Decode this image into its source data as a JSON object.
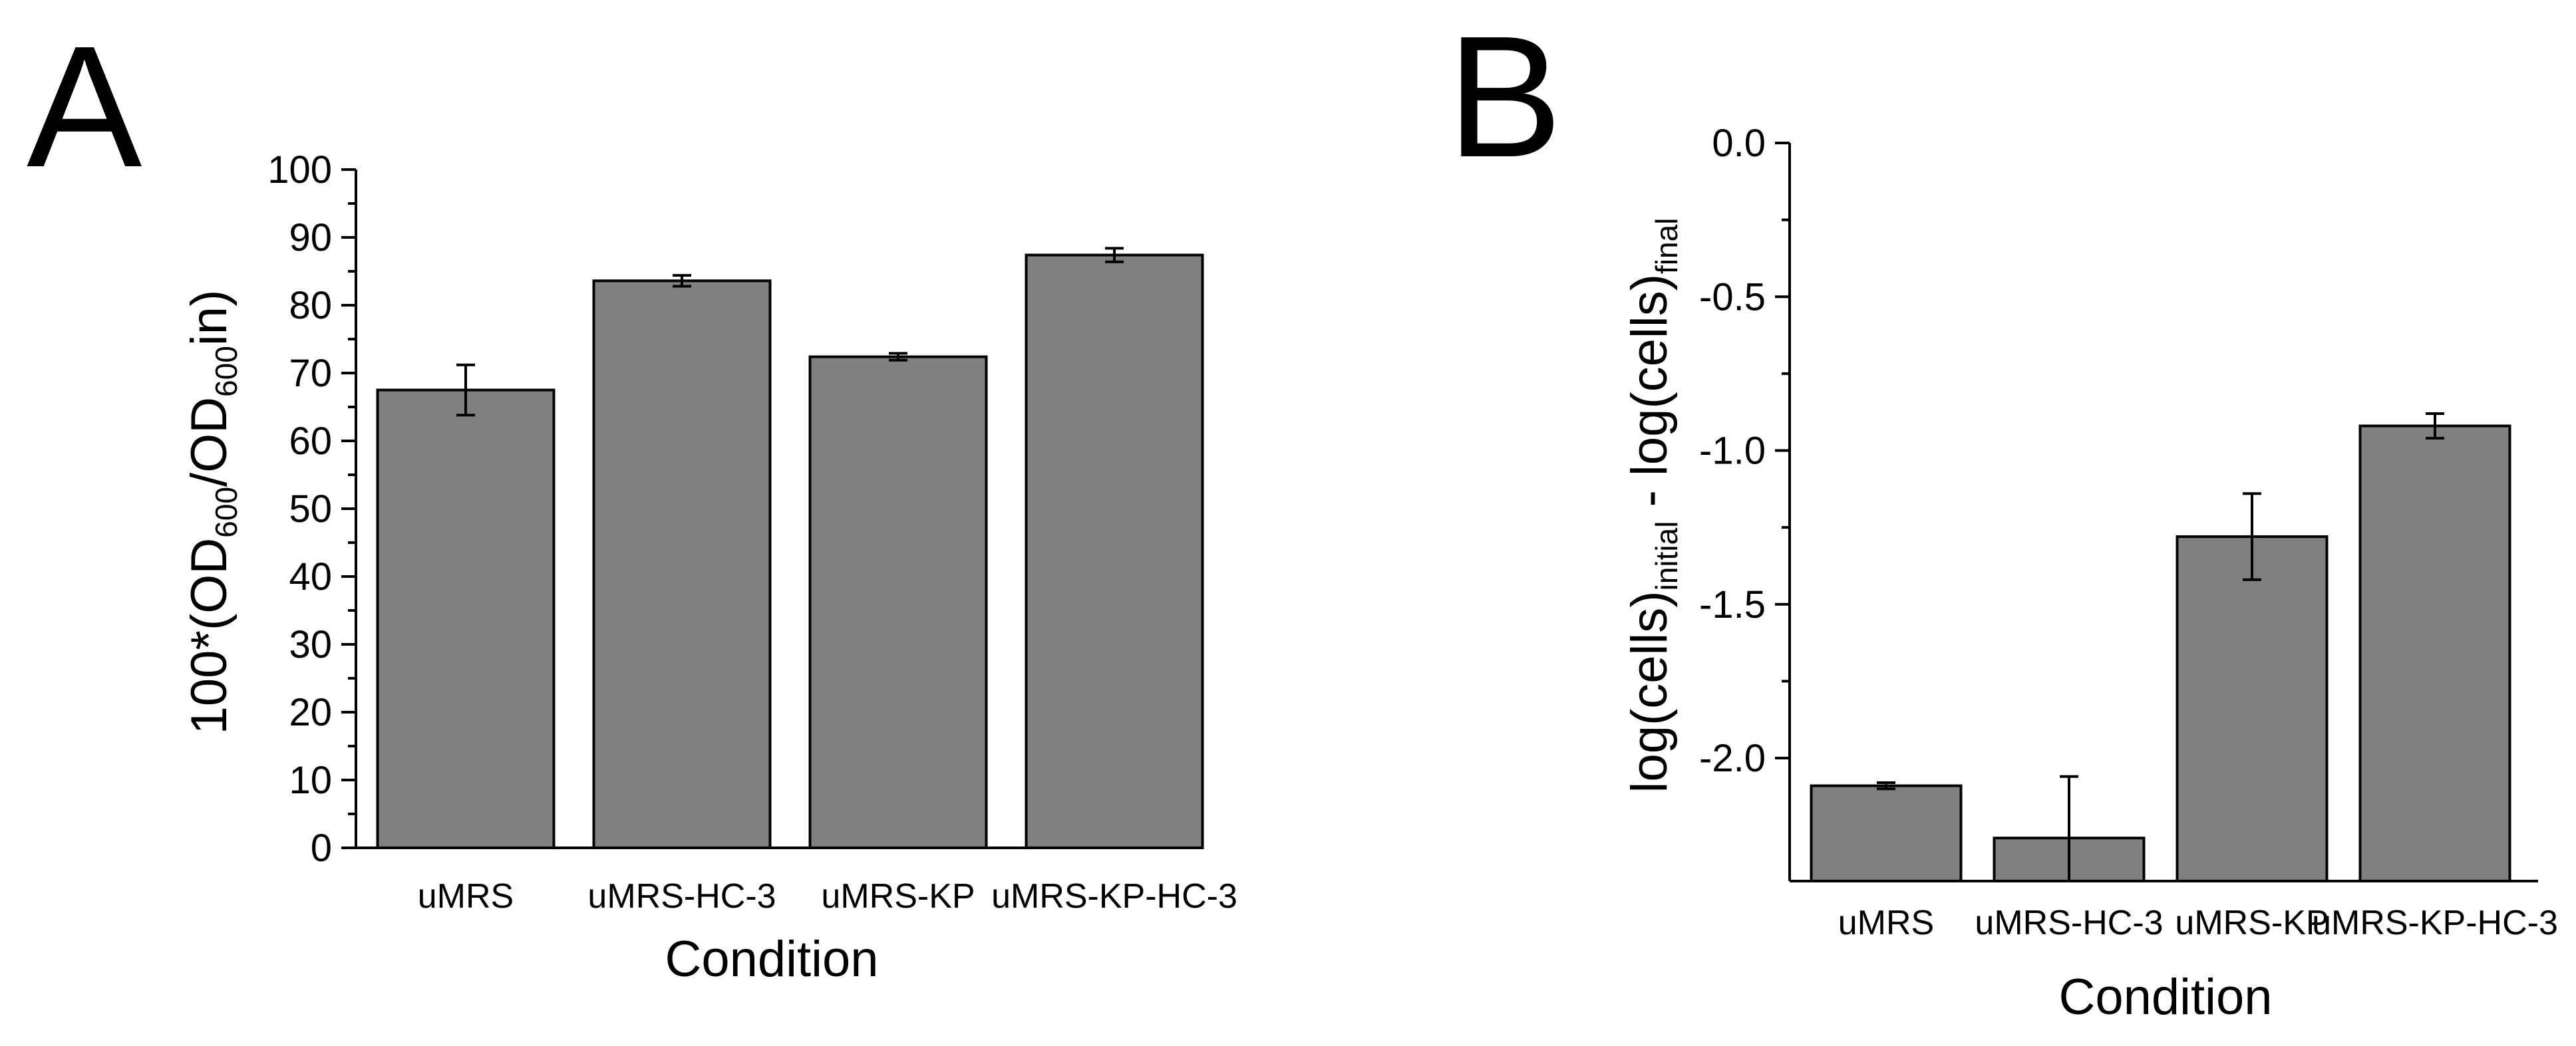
{
  "chart_data": [
    {
      "panel": "A",
      "type": "bar",
      "xlabel": "Condition",
      "ylabel": {
        "parts": [
          {
            "t": "100*(OD",
            "s": "main"
          },
          {
            "t": "600",
            "s": "sub"
          },
          {
            "t": "/OD",
            "s": "main"
          },
          {
            "t": "600",
            "s": "sub"
          },
          {
            "t": "in)",
            "s": "main"
          }
        ]
      },
      "categories": [
        "uMRS",
        "uMRS-HC-3",
        "uMRS-KP",
        "uMRS-KP-HC-3"
      ],
      "values": [
        67.5,
        83.6,
        72.4,
        87.4
      ],
      "errors": [
        3.7,
        0.8,
        0.5,
        1.0
      ],
      "ylim": [
        0,
        100
      ],
      "yticks": [
        0,
        10,
        20,
        30,
        40,
        50,
        60,
        70,
        80,
        90,
        100
      ],
      "ytick_labels": [
        "0",
        "10",
        "20",
        "30",
        "40",
        "50",
        "60",
        "70",
        "80",
        "90",
        "100"
      ],
      "bar_color": "#808080"
    },
    {
      "panel": "B",
      "type": "bar",
      "xlabel": "Condition",
      "ylabel": {
        "parts": [
          {
            "t": "log(cells)",
            "s": "main"
          },
          {
            "t": "initial",
            "s": "sub"
          },
          {
            "t": " - log(cells)",
            "s": "main"
          },
          {
            "t": "final",
            "s": "sub"
          }
        ]
      },
      "categories": [
        "uMRS",
        "uMRS-HC-3",
        "uMRS-KP",
        "uMRS-KP-HC-3"
      ],
      "values": [
        -2.09,
        -2.26,
        -1.28,
        -0.92
      ],
      "errors": [
        0.01,
        0.2,
        0.14,
        0.04
      ],
      "ylim": [
        -2.4,
        0.0
      ],
      "yticks": [
        -2.0,
        -1.5,
        -1.0,
        -0.5,
        0.0
      ],
      "ytick_labels": [
        "-2.0",
        "-1.5",
        "-1.0",
        "-0.5",
        "0.0"
      ],
      "bar_color": "#808080"
    }
  ]
}
